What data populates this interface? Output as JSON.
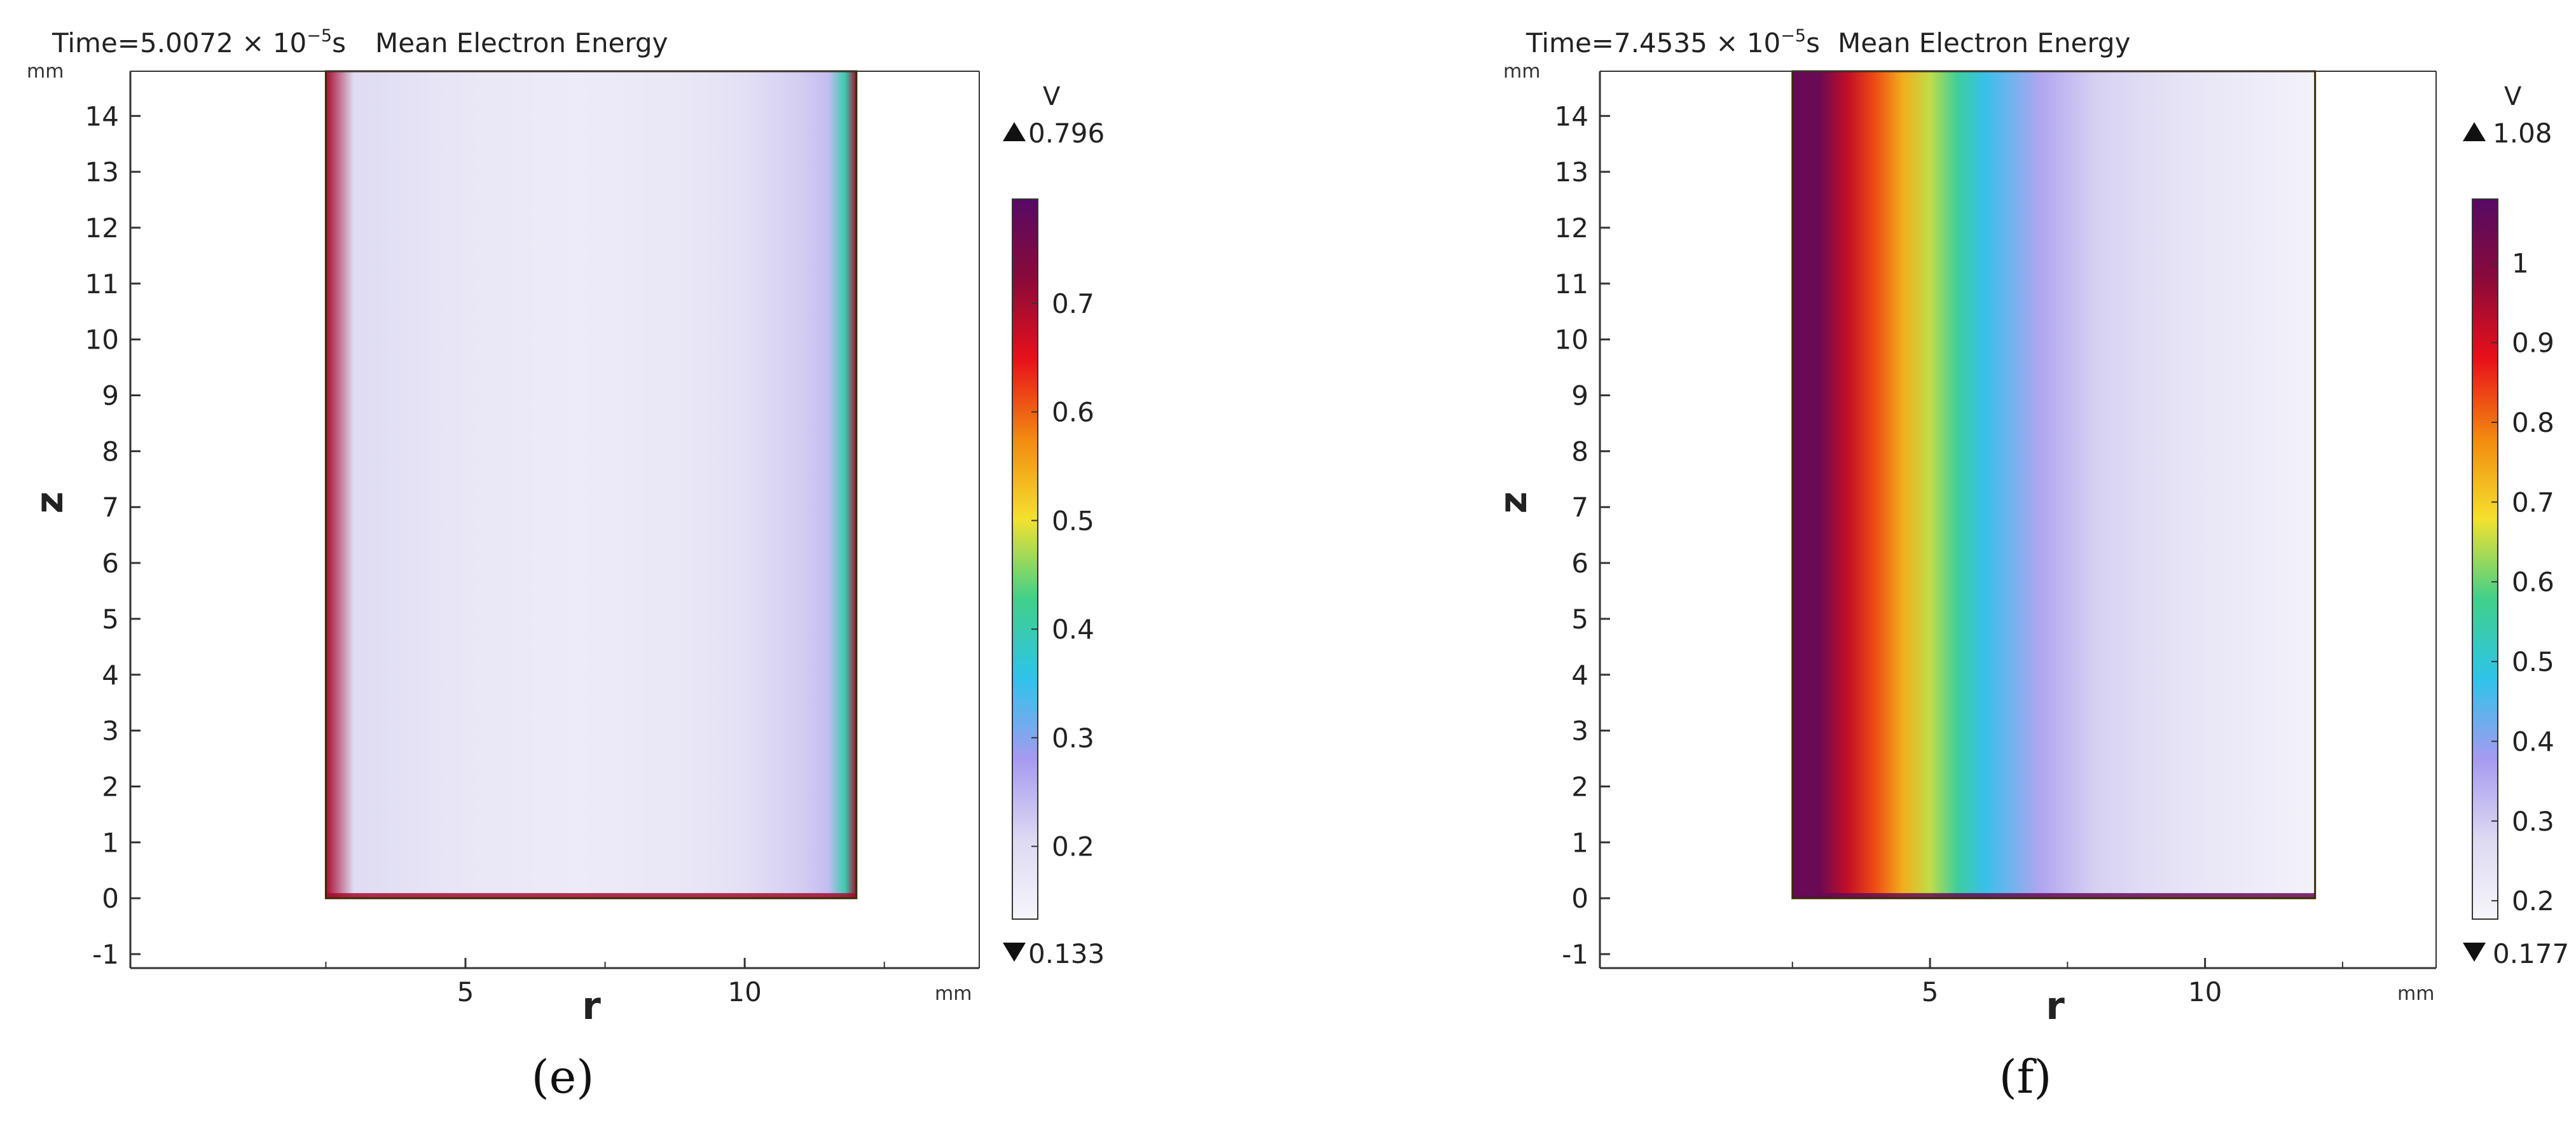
{
  "chart_data": [
    {
      "type": "heatmap",
      "panel_label": "(e)",
      "title": "Mean Electron Energy",
      "time_label": "Time=5.0072 × 10",
      "time_exponent": "−5",
      "time_unit": "s",
      "xlabel": "r",
      "ylabel": "z",
      "x_unit": "mm",
      "y_unit": "mm",
      "xlim": [
        -1.0,
        14.2
      ],
      "ylim": [
        -1.25,
        14.8
      ],
      "x_ticks": [
        5,
        10
      ],
      "y_ticks": [
        -1,
        0,
        1,
        2,
        3,
        4,
        5,
        6,
        7,
        8,
        9,
        10,
        11,
        12,
        13,
        14
      ],
      "domain_r": [
        2.5,
        12.0
      ],
      "domain_z": [
        0,
        14.8
      ],
      "colorbar": {
        "unit": "V",
        "max_label": "0.796",
        "min_label": "0.133",
        "min": 0.133,
        "max": 0.796,
        "ticks": [
          0.2,
          0.3,
          0.4,
          0.5,
          0.6,
          0.7
        ],
        "colors": [
          "#f6f6fb",
          "#ddd9f2",
          "#a69af0",
          "#2fc3ea",
          "#40d08a",
          "#f4e12e",
          "#f28a10",
          "#e8101a",
          "#8a0a3a",
          "#560a64"
        ]
      },
      "profile": {
        "r": [
          2.5,
          3.0,
          5.0,
          7.0,
          9.0,
          10.0,
          11.0,
          11.5,
          11.8,
          12.0
        ],
        "value": [
          0.7,
          0.2,
          0.17,
          0.16,
          0.17,
          0.19,
          0.22,
          0.24,
          0.4,
          0.7
        ]
      }
    },
    {
      "type": "heatmap",
      "panel_label": "(f)",
      "title": "Mean Electron Energy",
      "time_label": "Time=7.4535 × 10",
      "time_exponent": "−5",
      "time_unit": "s",
      "xlabel": "r",
      "ylabel": "z",
      "x_unit": "mm",
      "y_unit": "mm",
      "xlim": [
        -1.0,
        14.2
      ],
      "ylim": [
        -1.25,
        14.8
      ],
      "x_ticks": [
        5,
        10
      ],
      "y_ticks": [
        -1,
        0,
        1,
        2,
        3,
        4,
        5,
        6,
        7,
        8,
        9,
        10,
        11,
        12,
        13,
        14
      ],
      "domain_r": [
        2.5,
        12.0
      ],
      "domain_z": [
        0,
        14.8
      ],
      "colorbar": {
        "unit": "V",
        "max_label": "1.08",
        "min_label": "0.177",
        "min": 0.177,
        "max": 1.08,
        "ticks": [
          0.2,
          0.3,
          0.4,
          0.5,
          0.6,
          0.7,
          0.8,
          0.9,
          1
        ],
        "colors": [
          "#f6f6fb",
          "#ddd9f2",
          "#a69af0",
          "#2fc3ea",
          "#40d08a",
          "#f4e12e",
          "#f28a10",
          "#e8101a",
          "#8a0a3a",
          "#560a64"
        ]
      },
      "profile": {
        "r": [
          2.5,
          3.0,
          3.5,
          4.0,
          4.5,
          5.0,
          5.5,
          6.0,
          7.0,
          8.0,
          9.0,
          10.0,
          11.0,
          12.0
        ],
        "value": [
          1.05,
          1.04,
          0.92,
          0.83,
          0.74,
          0.65,
          0.56,
          0.47,
          0.36,
          0.29,
          0.26,
          0.23,
          0.21,
          0.19
        ]
      }
    }
  ]
}
